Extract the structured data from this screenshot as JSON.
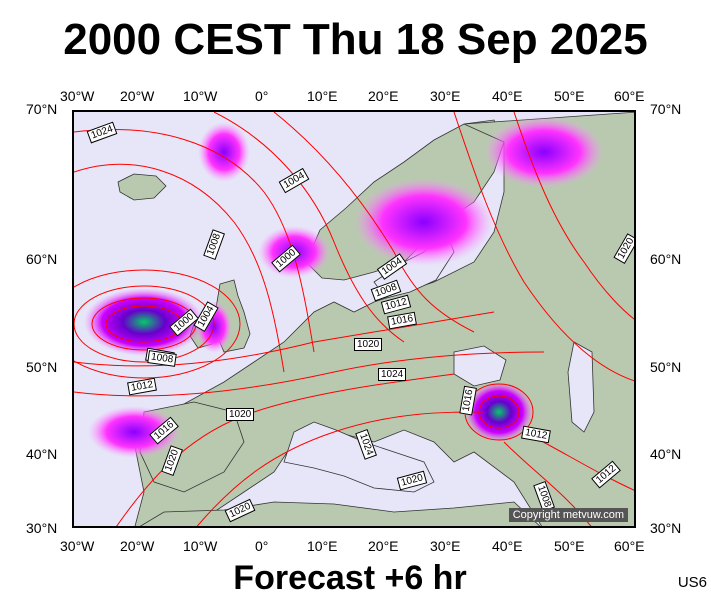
{
  "title": "2000 CEST Thu 18 Sep 2025",
  "footer": "Forecast +6 hr",
  "model_code": "US6",
  "copyright": "Copyright metvuw.com",
  "lon_labels": [
    "30°W",
    "20°W",
    "10°W",
    "0°",
    "10°E",
    "20°E",
    "30°E",
    "40°E",
    "50°E",
    "60°E"
  ],
  "lat_labels": [
    "70°N",
    "60°N",
    "50°N",
    "40°N",
    "30°N"
  ],
  "isobar_labels": [
    "1024",
    "1004",
    "1008",
    "1000",
    "1008",
    "1000",
    "1004",
    "1004",
    "1008",
    "1012",
    "1016",
    "1020",
    "1020",
    "1024",
    "1008",
    "1012",
    "1016",
    "1020",
    "1024",
    "1016",
    "1020",
    "1012",
    "1008",
    "1012",
    "1020",
    "1020"
  ],
  "colors": {
    "ocean": "#e6e6f8",
    "land": "#b8c9b0",
    "isobar": "#ff0000",
    "precip_light": "#ff33ff",
    "precip_heavy": "#8b00ff",
    "precip_core": "#00cc66"
  }
}
